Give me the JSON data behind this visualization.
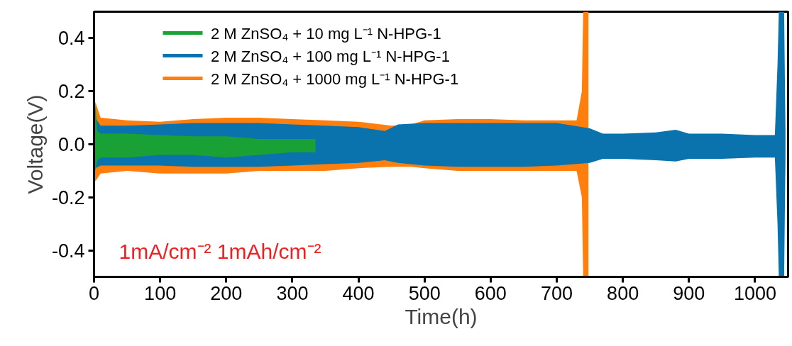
{
  "chart_data": {
    "type": "line",
    "xlabel": "Time(h)",
    "ylabel": "Voltage(V)",
    "xlim": [
      0,
      1050
    ],
    "xticks": [
      0,
      100,
      200,
      300,
      400,
      500,
      600,
      700,
      800,
      900,
      1000
    ],
    "ylim": [
      -0.5,
      0.5
    ],
    "yticks": [
      -0.4,
      -0.2,
      {
        "value": 0,
        "label": "0.0"
      },
      0.2,
      0.4
    ],
    "grid": false,
    "legend": "top left",
    "annotations": [
      "1mA/cm⁻² 1mAh/cm⁻²"
    ],
    "series": [
      {
        "name": "2 M ZnSO₄ + 10 mg L⁻¹ N-HPG-1",
        "color": "#1aa136",
        "x": [
          0,
          2,
          5,
          10,
          50,
          100,
          150,
          200,
          250,
          300,
          335
        ],
        "values": [
          null,
          null,
          null,
          null,
          null,
          null,
          null,
          null,
          null,
          null,
          null
        ],
        "upper": [
          0.04,
          0.15,
          0.05,
          0.04,
          0.04,
          0.035,
          0.03,
          0.03,
          0.02,
          0.02,
          0.02
        ],
        "lower": [
          -0.05,
          -0.1,
          -0.06,
          -0.05,
          -0.05,
          -0.04,
          -0.04,
          -0.05,
          -0.04,
          -0.03,
          -0.03
        ]
      },
      {
        "name": "2 M ZnSO₄ + 100 mg L⁻¹ N-HPG-1",
        "color": "#0a72ad",
        "x": [
          0,
          2,
          10,
          50,
          100,
          150,
          200,
          250,
          300,
          350,
          400,
          440,
          460,
          500,
          550,
          600,
          650,
          700,
          750,
          770,
          800,
          850,
          880,
          900,
          950,
          1000,
          1030,
          1034,
          1036,
          1044,
          1046
        ],
        "values": [
          null,
          null,
          null,
          null,
          null,
          null,
          null,
          null,
          null,
          null,
          null,
          null,
          null,
          null,
          null,
          null,
          null,
          null,
          null,
          null,
          null,
          null,
          null,
          null,
          null,
          null,
          null,
          null,
          null,
          null,
          null
        ],
        "upper": [
          0.08,
          0.1,
          0.07,
          0.07,
          0.075,
          0.08,
          0.08,
          0.08,
          0.075,
          0.07,
          0.065,
          0.05,
          0.075,
          0.08,
          0.08,
          0.08,
          0.08,
          0.08,
          0.06,
          0.04,
          0.04,
          0.045,
          0.055,
          0.04,
          0.04,
          0.035,
          0.035,
          0.3,
          0.5,
          0.5,
          0.05
        ],
        "lower": [
          -0.08,
          -0.09,
          -0.08,
          -0.08,
          -0.08,
          -0.085,
          -0.085,
          -0.085,
          -0.08,
          -0.075,
          -0.07,
          -0.06,
          -0.07,
          -0.08,
          -0.085,
          -0.085,
          -0.085,
          -0.08,
          -0.07,
          -0.055,
          -0.055,
          -0.06,
          -0.065,
          -0.055,
          -0.055,
          -0.05,
          -0.05,
          -0.3,
          -0.5,
          -0.5,
          -0.05
        ]
      },
      {
        "name": "2 M ZnSO₄ + 1000 mg L⁻¹ N-HPG-1",
        "color": "#ff7f0e",
        "x": [
          0,
          2,
          10,
          50,
          100,
          150,
          200,
          250,
          300,
          350,
          400,
          450,
          480,
          500,
          550,
          600,
          650,
          700,
          730,
          738,
          740,
          748
        ],
        "values": [
          null,
          null,
          null,
          null,
          null,
          null,
          null,
          null,
          null,
          null,
          null,
          null,
          null,
          null,
          null,
          null,
          null,
          null,
          null,
          null,
          null,
          null
        ],
        "upper": [
          0.1,
          0.16,
          0.1,
          0.09,
          0.085,
          0.095,
          0.1,
          0.1,
          0.095,
          0.09,
          0.085,
          0.07,
          0.075,
          0.09,
          0.095,
          0.095,
          0.09,
          0.09,
          0.09,
          0.2,
          0.5,
          0.5
        ],
        "lower": [
          -0.1,
          -0.14,
          -0.11,
          -0.1,
          -0.11,
          -0.11,
          -0.11,
          -0.1,
          -0.1,
          -0.1,
          -0.09,
          -0.085,
          -0.085,
          -0.09,
          -0.1,
          -0.1,
          -0.1,
          -0.1,
          -0.1,
          -0.2,
          -0.5,
          -0.5
        ]
      }
    ]
  }
}
